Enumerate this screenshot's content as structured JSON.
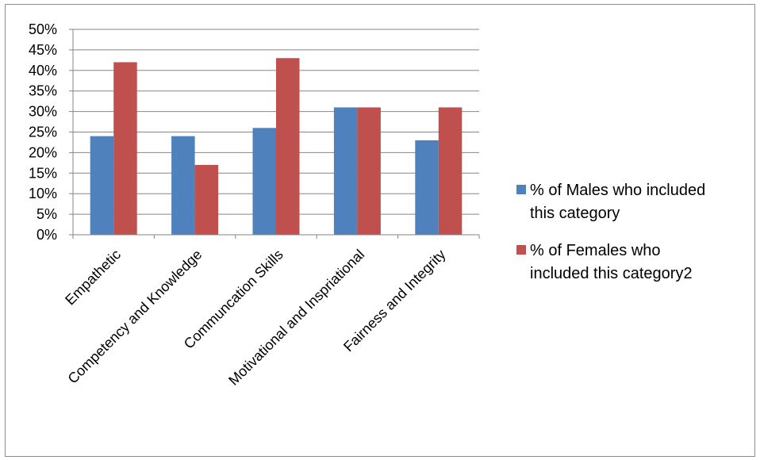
{
  "chart_data": {
    "type": "bar",
    "categories": [
      "Empathetic",
      "Competency and Knowledge",
      "Communcation Skills",
      "Motivational and Inspriational",
      "Fairness and Integrity"
    ],
    "series": [
      {
        "name": "% of Males who included this category",
        "legend_lines": [
          "% of Males who included",
          "this category"
        ],
        "color": "#4f81bd",
        "values": [
          24,
          24,
          26,
          31,
          23
        ]
      },
      {
        "name": "% of Females who included this category2",
        "legend_lines": [
          "% of Females who",
          "included this category2"
        ],
        "color": "#c0504d",
        "values": [
          42,
          17,
          43,
          31,
          31
        ]
      }
    ],
    "ylim": [
      0,
      50
    ],
    "yticks": [
      "0%",
      "5%",
      "10%",
      "15%",
      "20%",
      "25%",
      "30%",
      "35%",
      "40%",
      "45%",
      "50%"
    ],
    "ytick_values": [
      0,
      5,
      10,
      15,
      20,
      25,
      30,
      35,
      40,
      45,
      50
    ],
    "grid": true,
    "legend_position": "right",
    "gridline_color": "#868686",
    "axis_color": "#868686"
  }
}
